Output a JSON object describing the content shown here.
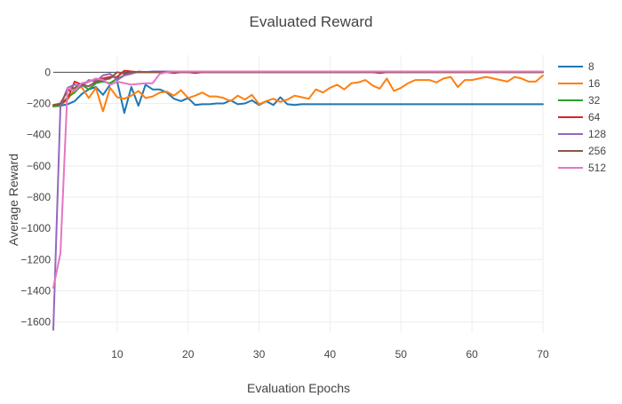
{
  "chart_data": {
    "type": "line",
    "title": "Evaluated Reward",
    "xlabel": "Evaluation Epochs",
    "ylabel": "Average Reward",
    "xlim": [
      1,
      70
    ],
    "ylim": [
      -1670,
      110
    ],
    "xticks": [
      10,
      20,
      30,
      40,
      50,
      60,
      70
    ],
    "yticks": [
      0,
      -200,
      -400,
      -600,
      -800,
      -1000,
      -1200,
      -1400,
      -1600
    ],
    "ytick_labels": [
      "0",
      "−200",
      "−400",
      "−600",
      "−800",
      "−1000",
      "−1200",
      "−1400",
      "−1600"
    ],
    "grid": true,
    "legend_position": "right",
    "series": [
      {
        "name": "8",
        "color": "#1f77b4",
        "x": [
          1,
          2,
          3,
          4,
          5,
          6,
          7,
          8,
          9,
          10,
          11,
          12,
          13,
          14,
          15,
          16,
          17,
          18,
          19,
          20,
          21,
          22,
          23,
          24,
          25,
          26,
          27,
          28,
          29,
          30,
          31,
          32,
          33,
          34,
          35,
          36,
          37,
          38,
          39,
          40,
          41,
          42,
          43,
          44,
          45,
          46,
          47,
          48,
          49,
          50,
          51,
          52,
          53,
          54,
          55,
          56,
          57,
          58,
          59,
          60,
          61,
          62,
          63,
          64,
          65,
          66,
          67,
          68,
          69,
          70
        ],
        "y": [
          -220,
          -215,
          -205,
          -185,
          -140,
          -110,
          -95,
          -145,
          -80,
          -60,
          -260,
          -95,
          -215,
          -80,
          -110,
          -110,
          -130,
          -170,
          -185,
          -165,
          -210,
          -205,
          -205,
          -200,
          -200,
          -180,
          -205,
          -200,
          -180,
          -210,
          -185,
          -210,
          -160,
          -205,
          -210,
          -205,
          -205,
          -205,
          -205,
          -205,
          -205,
          -205,
          -205,
          -205,
          -205,
          -205,
          -205,
          -205,
          -205,
          -205,
          -205,
          -205,
          -205,
          -205,
          -205,
          -205,
          -205,
          -205,
          -205,
          -205,
          -205,
          -205,
          -205,
          -205,
          -205,
          -205,
          -205,
          -205,
          -205,
          -205
        ]
      },
      {
        "name": "16",
        "color": "#ff7f0e",
        "x": [
          1,
          2,
          3,
          4,
          5,
          6,
          7,
          8,
          9,
          10,
          11,
          12,
          13,
          14,
          15,
          16,
          17,
          18,
          19,
          20,
          21,
          22,
          23,
          24,
          25,
          26,
          27,
          28,
          29,
          30,
          31,
          32,
          33,
          34,
          35,
          36,
          37,
          38,
          39,
          40,
          41,
          42,
          43,
          44,
          45,
          46,
          47,
          48,
          49,
          50,
          51,
          52,
          53,
          54,
          55,
          56,
          57,
          58,
          59,
          60,
          61,
          62,
          63,
          64,
          65,
          66,
          67,
          68,
          69,
          70
        ],
        "y": [
          -220,
          -210,
          -175,
          -110,
          -95,
          -165,
          -100,
          -250,
          -100,
          -160,
          -170,
          -150,
          -120,
          -165,
          -155,
          -130,
          -125,
          -150,
          -115,
          -165,
          -150,
          -130,
          -155,
          -155,
          -165,
          -185,
          -150,
          -175,
          -145,
          -205,
          -185,
          -170,
          -190,
          -175,
          -150,
          -160,
          -170,
          -110,
          -130,
          -100,
          -80,
          -110,
          -70,
          -65,
          -50,
          -85,
          -105,
          -40,
          -120,
          -100,
          -70,
          -50,
          -50,
          -50,
          -65,
          -40,
          -30,
          -95,
          -50,
          -50,
          -40,
          -30,
          -40,
          -50,
          -60,
          -30,
          -40,
          -60,
          -60,
          -20
        ]
      },
      {
        "name": "32",
        "color": "#2ca02c",
        "x": [
          1,
          2,
          3,
          4,
          5,
          6,
          7,
          8,
          9,
          10,
          11,
          12,
          13,
          14,
          15,
          16,
          17,
          18,
          19,
          20,
          21,
          22,
          23,
          24,
          25,
          26,
          27,
          28,
          29,
          30,
          31,
          32,
          33,
          34,
          35,
          36,
          37,
          38,
          39,
          40,
          41,
          42,
          43,
          44,
          45,
          46,
          47,
          48,
          49,
          50,
          51,
          52,
          53,
          54,
          55,
          56,
          57,
          58,
          59,
          60,
          61,
          62,
          63,
          64,
          65,
          66,
          67,
          68,
          69,
          70
        ],
        "y": [
          -215,
          -215,
          -160,
          -130,
          -80,
          -110,
          -70,
          -60,
          -70,
          -40,
          -20,
          -5,
          0,
          0,
          0,
          0,
          0,
          0,
          0,
          0,
          0,
          0,
          0,
          0,
          0,
          0,
          0,
          0,
          0,
          0,
          0,
          0,
          0,
          0,
          0,
          0,
          0,
          0,
          0,
          0,
          0,
          0,
          0,
          0,
          0,
          0,
          0,
          0,
          0,
          0,
          0,
          0,
          0,
          0,
          0,
          0,
          0,
          0,
          0,
          0,
          0,
          0,
          0,
          0,
          0,
          0,
          0,
          0,
          0,
          0
        ]
      },
      {
        "name": "64",
        "color": "#d62728",
        "x": [
          1,
          2,
          3,
          4,
          5,
          6,
          7,
          8,
          9,
          10,
          11,
          12,
          13,
          14,
          15,
          16,
          17,
          18,
          19,
          20,
          21,
          22,
          23,
          24,
          25,
          26,
          27,
          28,
          29,
          30,
          31,
          32,
          33,
          34,
          35,
          36,
          37,
          38,
          39,
          40,
          41,
          42,
          43,
          44,
          45,
          46,
          47,
          48,
          49,
          50,
          51,
          52,
          53,
          54,
          55,
          56,
          57,
          58,
          59,
          60,
          61,
          62,
          63,
          64,
          65,
          66,
          67,
          68,
          69,
          70
        ],
        "y": [
          -210,
          -205,
          -170,
          -60,
          -80,
          -60,
          -45,
          -40,
          -30,
          -30,
          10,
          5,
          0,
          0,
          0,
          0,
          0,
          -5,
          0,
          0,
          -5,
          0,
          0,
          0,
          0,
          0,
          0,
          0,
          0,
          0,
          0,
          0,
          0,
          0,
          0,
          0,
          0,
          0,
          0,
          0,
          0,
          0,
          0,
          0,
          0,
          0,
          -5,
          0,
          0,
          0,
          0,
          0,
          0,
          0,
          0,
          0,
          0,
          0,
          0,
          0,
          0,
          0,
          0,
          0,
          0,
          0,
          0,
          0,
          0,
          0
        ]
      },
      {
        "name": "128",
        "color": "#9467bd",
        "x": [
          1,
          2,
          3,
          4,
          5,
          6,
          7,
          8,
          9,
          10,
          11,
          12,
          13,
          14,
          15,
          16,
          17,
          18,
          19,
          20,
          21,
          22,
          23,
          24,
          25,
          26,
          27,
          28,
          29,
          30,
          31,
          32,
          33,
          34,
          35,
          36,
          37,
          38,
          39,
          40,
          41,
          42,
          43,
          44,
          45,
          46,
          47,
          48,
          49,
          50,
          51,
          52,
          53,
          54,
          55,
          56,
          57,
          58,
          59,
          60,
          61,
          62,
          63,
          64,
          65,
          66,
          67,
          68,
          69,
          70
        ],
        "y": [
          -1650,
          -220,
          -100,
          -80,
          -90,
          -50,
          -60,
          -20,
          -10,
          -50,
          -20,
          -10,
          5,
          0,
          5,
          5,
          5,
          5,
          5,
          5,
          0,
          5,
          5,
          5,
          5,
          5,
          0,
          5,
          5,
          5,
          5,
          0,
          5,
          0,
          5,
          5,
          5,
          5,
          5,
          5,
          5,
          5,
          5,
          5,
          5,
          5,
          5,
          5,
          5,
          5,
          5,
          5,
          5,
          5,
          5,
          5,
          5,
          5,
          5,
          5,
          5,
          5,
          5,
          5,
          5,
          5,
          5,
          5,
          5,
          5
        ]
      },
      {
        "name": "256",
        "color": "#8c564b",
        "x": [
          1,
          2,
          3,
          4,
          5,
          6,
          7,
          8,
          9,
          10,
          11,
          12,
          13,
          14,
          15,
          16,
          17,
          18,
          19,
          20,
          21,
          22,
          23,
          24,
          25,
          26,
          27,
          28,
          29,
          30,
          31,
          32,
          33,
          34,
          35,
          36,
          37,
          38,
          39,
          40,
          41,
          42,
          43,
          44,
          45,
          46,
          47,
          48,
          49,
          50,
          51,
          52,
          53,
          54,
          55,
          56,
          57,
          58,
          59,
          60,
          61,
          62,
          63,
          64,
          65,
          66,
          67,
          68,
          69,
          70
        ],
        "y": [
          -210,
          -200,
          -120,
          -100,
          -80,
          -90,
          -60,
          -50,
          -40,
          0,
          -10,
          0,
          0,
          0,
          0,
          0,
          0,
          0,
          0,
          0,
          0,
          0,
          0,
          0,
          0,
          0,
          0,
          0,
          0,
          0,
          0,
          0,
          0,
          0,
          0,
          0,
          0,
          0,
          0,
          0,
          0,
          0,
          0,
          0,
          0,
          0,
          0,
          0,
          0,
          0,
          0,
          0,
          0,
          0,
          0,
          0,
          0,
          0,
          0,
          0,
          0,
          0,
          0,
          0,
          0,
          0,
          0,
          0,
          0,
          0
        ]
      },
      {
        "name": "512",
        "color": "#e377c2",
        "x": [
          1,
          2,
          3,
          4,
          5,
          6,
          7,
          8,
          9,
          10,
          11,
          12,
          13,
          14,
          15,
          16,
          17,
          18,
          19,
          20,
          21,
          22,
          23,
          24,
          25,
          26,
          27,
          28,
          29,
          30,
          31,
          32,
          33,
          34,
          35,
          36,
          37,
          38,
          39,
          40,
          41,
          42,
          43,
          44,
          45,
          46,
          47,
          48,
          49,
          50,
          51,
          52,
          53,
          54,
          55,
          56,
          57,
          58,
          59,
          60,
          61,
          62,
          63,
          64,
          65,
          66,
          67,
          68,
          69,
          70
        ],
        "y": [
          -1380,
          -1160,
          -100,
          -120,
          -70,
          -60,
          -40,
          -50,
          -80,
          -60,
          -70,
          -80,
          -75,
          -70,
          -70,
          -10,
          0,
          5,
          5,
          5,
          5,
          5,
          5,
          5,
          5,
          5,
          5,
          5,
          5,
          5,
          5,
          5,
          5,
          5,
          5,
          5,
          5,
          5,
          5,
          5,
          5,
          5,
          5,
          5,
          5,
          5,
          5,
          5,
          5,
          5,
          5,
          5,
          5,
          5,
          5,
          5,
          5,
          5,
          5,
          5,
          5,
          5,
          5,
          5,
          5,
          5,
          5,
          5,
          5,
          5
        ]
      }
    ]
  }
}
